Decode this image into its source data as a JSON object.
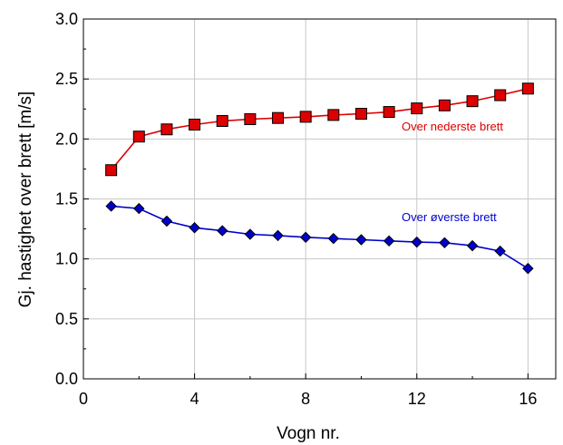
{
  "chart_data": {
    "type": "line",
    "xlabel": "Vogn nr.",
    "ylabel": "Gj. hastighet over  brett  [m/s]",
    "xlim": [
      0,
      17
    ],
    "ylim": [
      0.0,
      3.0
    ],
    "xticks": [
      "0",
      "4",
      "8",
      "12",
      "16"
    ],
    "yticks": [
      "0.0",
      "0.5",
      "1.0",
      "1.5",
      "2.0",
      "2.5",
      "3.0"
    ],
    "grid": true,
    "legend": "none",
    "series": [
      {
        "name": "Over nederste brett",
        "color": "#dd0000",
        "marker": "square",
        "x": [
          1,
          2,
          3,
          4,
          5,
          6,
          7,
          8,
          9,
          10,
          11,
          12,
          13,
          14,
          15,
          16
        ],
        "y": [
          1.74,
          2.02,
          2.08,
          2.12,
          2.15,
          2.165,
          2.175,
          2.185,
          2.2,
          2.21,
          2.225,
          2.255,
          2.28,
          2.315,
          2.365,
          2.42
        ]
      },
      {
        "name": "Over øverste brett",
        "color": "#0000cc",
        "marker": "diamond",
        "x": [
          1,
          2,
          3,
          4,
          5,
          6,
          7,
          8,
          9,
          10,
          11,
          12,
          13,
          14,
          15,
          16
        ],
        "y": [
          1.44,
          1.42,
          1.315,
          1.26,
          1.235,
          1.205,
          1.195,
          1.18,
          1.17,
          1.16,
          1.15,
          1.14,
          1.135,
          1.11,
          1.065,
          0.92
        ]
      }
    ]
  }
}
